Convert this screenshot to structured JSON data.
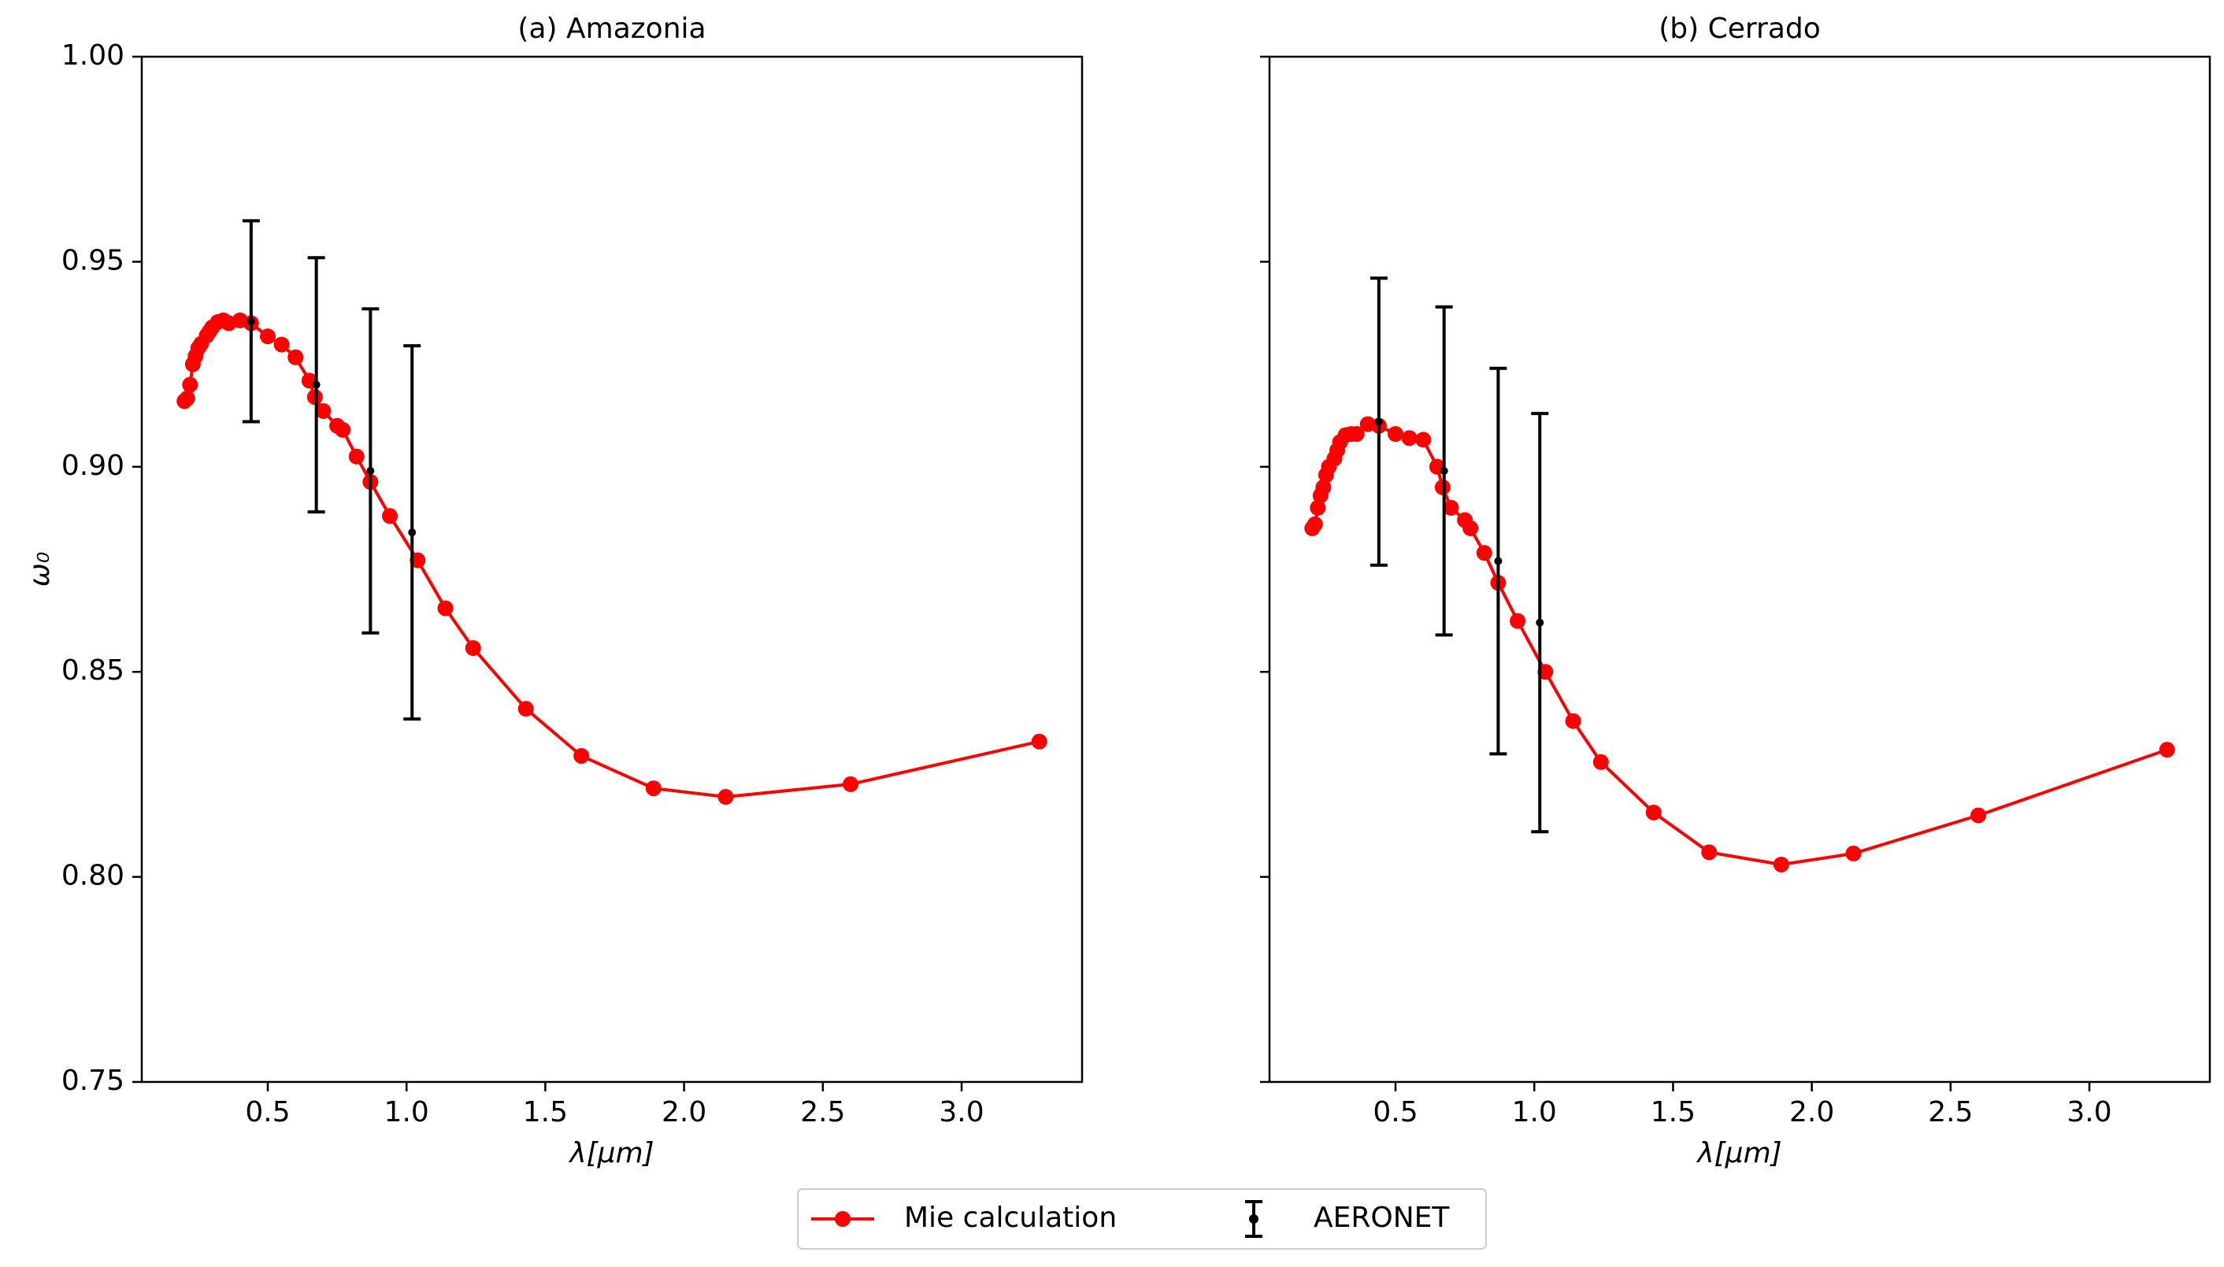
{
  "chart_data": [
    {
      "type": "line",
      "title": "(a) Amazonia",
      "xlabel": "λ[μm]",
      "ylabel": "ω₀",
      "xlim": [
        0.046,
        3.434
      ],
      "ylim": [
        0.75,
        1.0
      ],
      "xticks": [
        0.5,
        {
          "value": 1.0,
          "label": "1.0"
        },
        1.5,
        {
          "value": 2.0,
          "label": "2.0"
        },
        2.5,
        {
          "value": 3.0,
          "label": "3.0"
        }
      ],
      "yticks": [
        0.75,
        {
          "value": 0.8,
          "label": "0.80"
        },
        0.85,
        {
          "value": 0.9,
          "label": "0.90"
        },
        0.95,
        {
          "value": 1.0,
          "label": "1.00"
        }
      ],
      "series": [
        {
          "name": "Mie calculation",
          "color": "#ff0000",
          "x": [
            0.2,
            0.21,
            0.22,
            0.23,
            0.24,
            0.25,
            0.26,
            0.28,
            0.29,
            0.3,
            0.32,
            0.34,
            0.36,
            0.4,
            0.44,
            0.5,
            0.55,
            0.6,
            0.65,
            0.67,
            0.7,
            0.75,
            0.77,
            0.82,
            0.87,
            0.94,
            1.04,
            1.14,
            1.24,
            1.43,
            1.63,
            1.89,
            2.15,
            2.6,
            3.28
          ],
          "values": [
            0.916,
            0.9167,
            0.92,
            0.925,
            0.927,
            0.929,
            0.93,
            0.932,
            0.933,
            0.934,
            0.9353,
            0.9357,
            0.935,
            0.9357,
            0.935,
            0.9318,
            0.9298,
            0.9267,
            0.921,
            0.917,
            0.9136,
            0.91,
            0.909,
            0.9025,
            0.8963,
            0.888,
            0.8772,
            0.8655,
            0.8558,
            0.841,
            0.8295,
            0.8216,
            0.8195,
            0.8226,
            0.833
          ]
        },
        {
          "name": "AERONET",
          "color": "#000000",
          "x": [
            0.44,
            0.675,
            0.87,
            1.02
          ],
          "values": [
            0.9355,
            0.92,
            0.899,
            0.884
          ],
          "errors": [
            0.0245,
            0.031,
            0.0395,
            0.0455
          ]
        }
      ]
    },
    {
      "type": "line",
      "title": "(b) Cerrado",
      "xlabel": "λ[μm]",
      "xlim": [
        0.046,
        3.434
      ],
      "ylim": [
        0.75,
        1.0
      ],
      "xticks": [
        0.5,
        {
          "value": 1.0,
          "label": "1.0"
        },
        1.5,
        {
          "value": 2.0,
          "label": "2.0"
        },
        2.5,
        {
          "value": 3.0,
          "label": "3.0"
        }
      ],
      "yticks": [
        0.75,
        0.8,
        0.85,
        0.9,
        0.95,
        1.0
      ],
      "series": [
        {
          "color": "#ff0000",
          "x": [
            0.2,
            0.21,
            0.22,
            0.23,
            0.24,
            0.25,
            0.26,
            0.28,
            0.29,
            0.3,
            0.32,
            0.34,
            0.36,
            0.4,
            0.44,
            0.5,
            0.55,
            0.6,
            0.65,
            0.67,
            0.7,
            0.75,
            0.77,
            0.82,
            0.87,
            0.94,
            1.04,
            1.14,
            1.24,
            1.43,
            1.63,
            1.89,
            2.15,
            2.6,
            3.28
          ],
          "values": [
            0.885,
            0.886,
            0.89,
            0.893,
            0.895,
            0.898,
            0.9,
            0.902,
            0.904,
            0.906,
            0.9077,
            0.908,
            0.908,
            0.9104,
            0.91,
            0.908,
            0.907,
            0.9066,
            0.9,
            0.895,
            0.89,
            0.887,
            0.885,
            0.879,
            0.8717,
            0.8624,
            0.85,
            0.838,
            0.828,
            0.8157,
            0.806,
            0.803,
            0.8057,
            0.815,
            0.831
          ]
        },
        {
          "color": "#000000",
          "x": [
            0.44,
            0.675,
            0.87,
            1.02
          ],
          "values": [
            0.911,
            0.899,
            0.877,
            0.862
          ],
          "errors": [
            0.035,
            0.04,
            0.047,
            0.051
          ]
        }
      ]
    }
  ]
}
